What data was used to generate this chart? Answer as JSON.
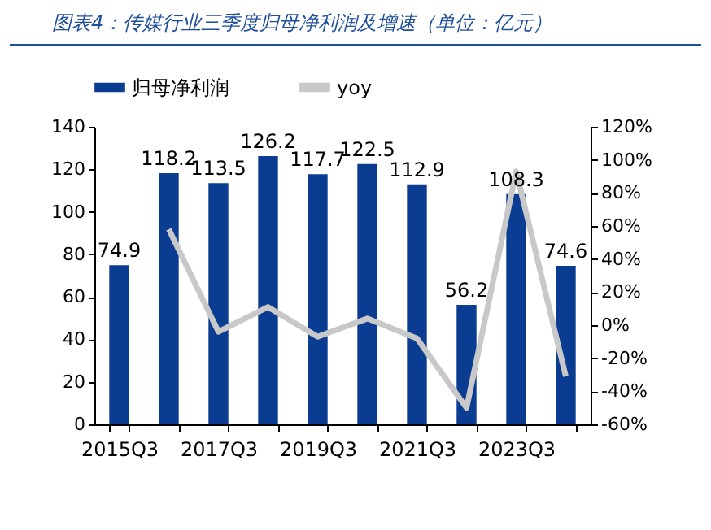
{
  "chart_data": {
    "type": "bar",
    "title": "图表4：传媒行业三季度归母净利润及增速（单位：亿元）",
    "categories": [
      "2015Q3",
      null,
      "2017Q3",
      null,
      "2019Q3",
      null,
      "2021Q3",
      null,
      "2023Q3",
      null
    ],
    "series": [
      {
        "name": "归母净利润",
        "color": "#0a3d91",
        "values": [
          74.9,
          118.2,
          113.5,
          126.2,
          117.7,
          122.5,
          112.9,
          56.2,
          108.3,
          74.6
        ],
        "value_labels": [
          "74.9",
          "118.2",
          "113.5",
          "126.2",
          "117.7",
          "122.5",
          "112.9",
          "56.2",
          "108.3",
          "74.6"
        ]
      },
      {
        "name": "yoy",
        "type": "line",
        "axis": "y2",
        "color": "#c8c8c8",
        "values": [
          null,
          58,
          -4,
          11,
          -7,
          4,
          -8,
          -50,
          93,
          -31
        ]
      }
    ],
    "ylim": [
      0,
      140
    ],
    "yticks": [
      0,
      20,
      40,
      60,
      80,
      100,
      120,
      140
    ],
    "y2lim": [
      -60,
      120
    ],
    "y2ticks": [
      {
        "value": -60,
        "label": "-60%"
      },
      {
        "value": -40,
        "label": "-40%"
      },
      {
        "value": -20,
        "label": "-20%"
      },
      {
        "value": 0,
        "label": "0%"
      },
      {
        "value": 20,
        "label": "20%"
      },
      {
        "value": 40,
        "label": "40%"
      },
      {
        "value": 60,
        "label": "60%"
      },
      {
        "value": 80,
        "label": "80%"
      },
      {
        "value": 100,
        "label": "100%"
      },
      {
        "value": 120,
        "label": "120%"
      }
    ],
    "grid": false,
    "legend": "top",
    "marker": "none",
    "line_style": "solid"
  }
}
